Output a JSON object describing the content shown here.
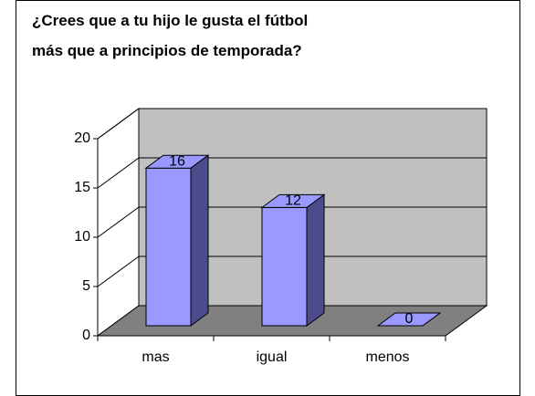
{
  "chart_data": {
    "type": "bar3d",
    "title": [
      "¿Crees que a tu hijo le gusta el fútbol",
      "más que a principios de temporada?"
    ],
    "categories": [
      "mas",
      "igual",
      "menos"
    ],
    "values": [
      16,
      12,
      0
    ],
    "color": "#9999ff",
    "ylim": [
      0,
      20
    ],
    "yticks": [
      0,
      5,
      10,
      15,
      20
    ],
    "grid": true
  }
}
